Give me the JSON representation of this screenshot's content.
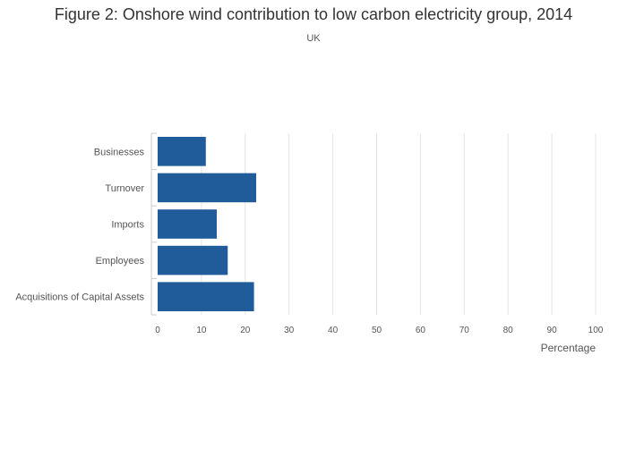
{
  "chart_data": {
    "type": "bar",
    "orientation": "horizontal",
    "title": "Figure 2: Onshore wind contribution to low carbon electricity group, 2014",
    "subtitle": "UK",
    "xlabel": "Percentage",
    "ylabel": "",
    "xlim": [
      0,
      100
    ],
    "xticks": [
      0,
      10,
      20,
      30,
      40,
      50,
      60,
      70,
      80,
      90,
      100
    ],
    "categories": [
      "Businesses",
      "Turnover",
      "Imports",
      "Employees",
      "Acquisitions of Capital Assets"
    ],
    "values": [
      11,
      22.5,
      13.5,
      16,
      22
    ],
    "bar_color": "#1f5c99",
    "grid": true,
    "legend": "none"
  }
}
